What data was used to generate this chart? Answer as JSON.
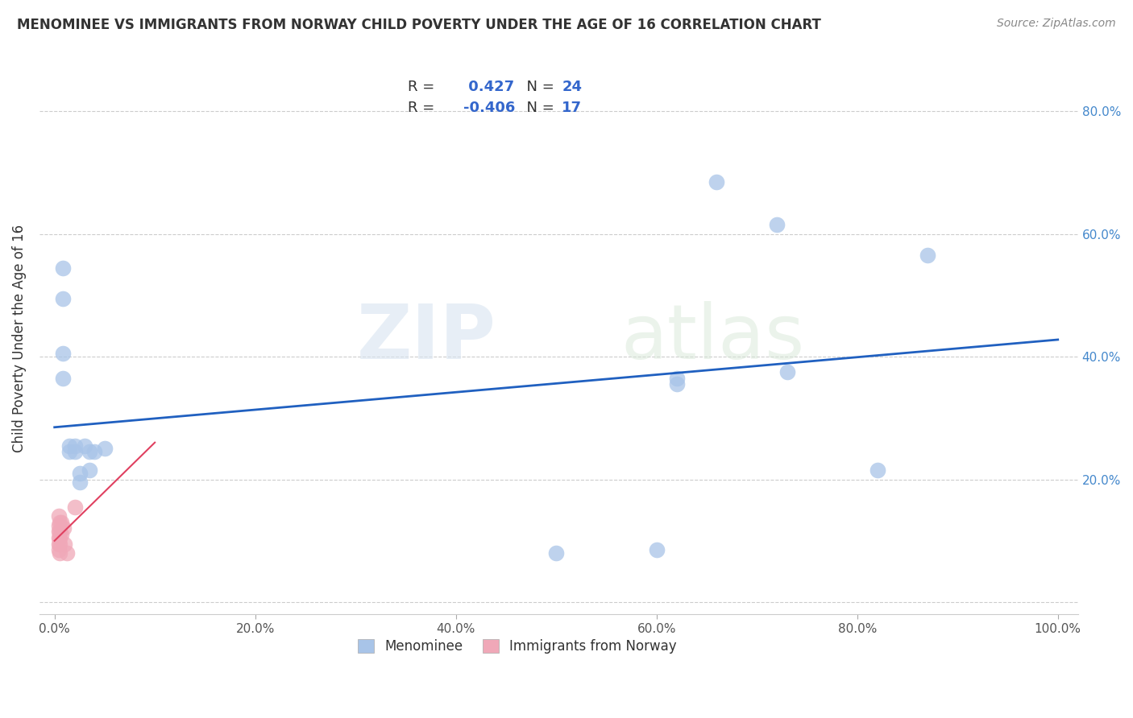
{
  "title": "MENOMINEE VS IMMIGRANTS FROM NORWAY CHILD POVERTY UNDER THE AGE OF 16 CORRELATION CHART",
  "source": "Source: ZipAtlas.com",
  "ylabel": "Child Poverty Under the Age of 16",
  "menominee_r": 0.427,
  "menominee_n": 24,
  "norway_r": -0.406,
  "norway_n": 17,
  "menominee_color": "#a8c4e8",
  "norway_color": "#f0a8b8",
  "trendline_menominee_color": "#2060c0",
  "trendline_norway_color": "#e04060",
  "menominee_scatter": [
    [
      0.008,
      0.545
    ],
    [
      0.008,
      0.495
    ],
    [
      0.008,
      0.405
    ],
    [
      0.008,
      0.365
    ],
    [
      0.015,
      0.255
    ],
    [
      0.015,
      0.245
    ],
    [
      0.02,
      0.255
    ],
    [
      0.02,
      0.245
    ],
    [
      0.025,
      0.21
    ],
    [
      0.025,
      0.195
    ],
    [
      0.03,
      0.255
    ],
    [
      0.035,
      0.245
    ],
    [
      0.035,
      0.215
    ],
    [
      0.04,
      0.245
    ],
    [
      0.05,
      0.25
    ],
    [
      0.62,
      0.365
    ],
    [
      0.62,
      0.355
    ],
    [
      0.66,
      0.685
    ],
    [
      0.6,
      0.085
    ],
    [
      0.72,
      0.615
    ],
    [
      0.73,
      0.375
    ],
    [
      0.82,
      0.215
    ],
    [
      0.87,
      0.565
    ],
    [
      0.5,
      0.08
    ]
  ],
  "norway_scatter": [
    [
      0.004,
      0.14
    ],
    [
      0.004,
      0.125
    ],
    [
      0.004,
      0.115
    ],
    [
      0.004,
      0.105
    ],
    [
      0.004,
      0.095
    ],
    [
      0.004,
      0.085
    ],
    [
      0.005,
      0.13
    ],
    [
      0.005,
      0.115
    ],
    [
      0.005,
      0.105
    ],
    [
      0.005,
      0.095
    ],
    [
      0.005,
      0.08
    ],
    [
      0.007,
      0.13
    ],
    [
      0.007,
      0.11
    ],
    [
      0.009,
      0.12
    ],
    [
      0.01,
      0.095
    ],
    [
      0.012,
      0.08
    ],
    [
      0.02,
      0.155
    ]
  ],
  "watermark_zip": "ZIP",
  "watermark_atlas": "atlas",
  "legend_labels": [
    "Menominee",
    "Immigrants from Norway"
  ],
  "xlim": [
    -0.015,
    1.02
  ],
  "ylim": [
    -0.02,
    0.88
  ]
}
